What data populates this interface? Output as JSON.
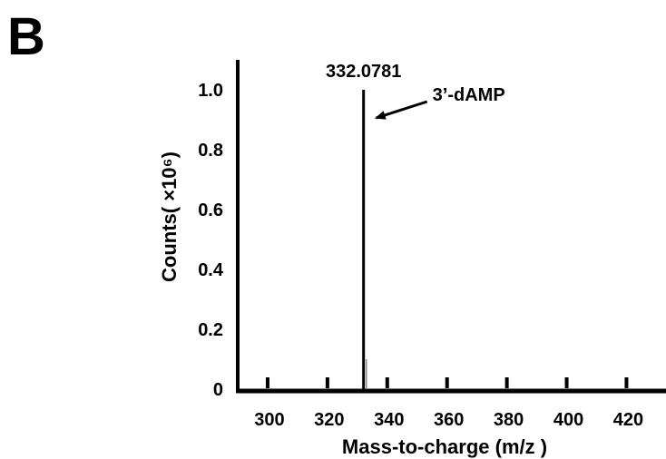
{
  "panel_label": "B",
  "chart_data": {
    "type": "bar",
    "xlabel": "Mass-to-charge (m/z )",
    "ylabel": "Counts( ×10⁶)",
    "xlim": [
      290,
      432
    ],
    "ylim": [
      0,
      1.1
    ],
    "x_ticks": [
      300,
      320,
      340,
      360,
      380,
      400,
      420
    ],
    "y_ticks": [
      {
        "value": 0,
        "label": "0"
      },
      {
        "value": 0.2,
        "label": "0.2"
      },
      {
        "value": 0.4,
        "label": "0.4"
      },
      {
        "value": 0.6,
        "label": "0.6"
      },
      {
        "value": 0.8,
        "label": "0.8"
      },
      {
        "value": 1.0,
        "label": "1.0"
      }
    ],
    "peaks": [
      {
        "mz": 332.0781,
        "intensity": 1.0,
        "label": "332.0781",
        "annotation": "3’-dAMP"
      },
      {
        "mz": 333.0,
        "intensity": 0.1
      }
    ],
    "grid": false,
    "legend": "none"
  }
}
